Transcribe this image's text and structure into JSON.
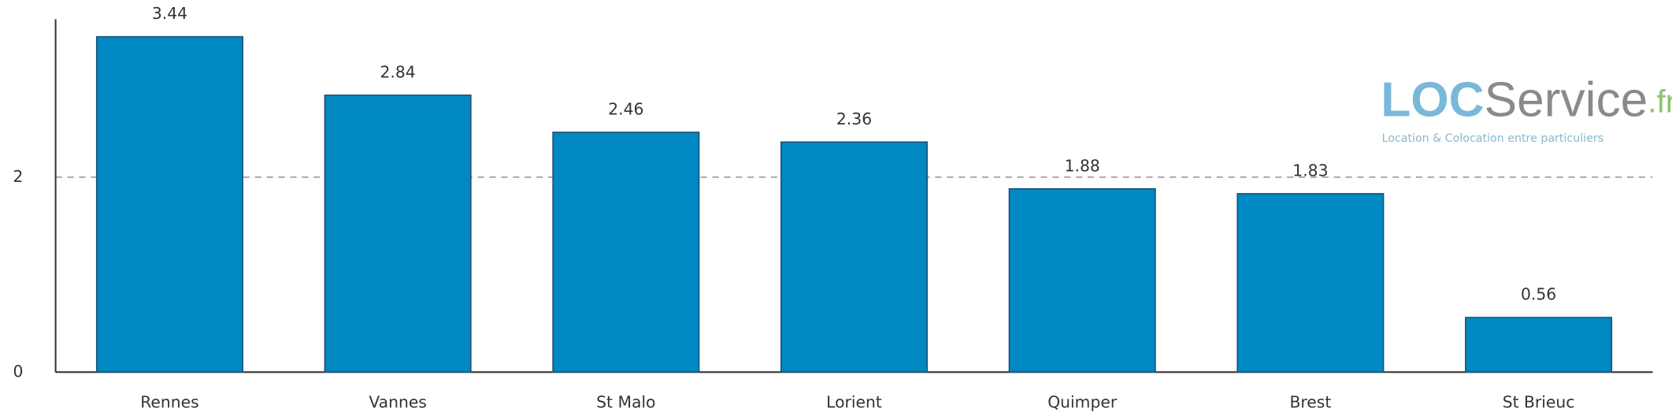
{
  "chart_data": {
    "type": "bar",
    "categories": [
      "Rennes",
      "Vannes",
      "St Malo",
      "Lorient",
      "Quimper",
      "Brest",
      "St Brieuc"
    ],
    "values": [
      3.44,
      2.84,
      2.46,
      2.36,
      1.88,
      1.83,
      0.56
    ],
    "color": "#0088c2",
    "ylim": [
      0,
      3.62
    ],
    "yticks": [
      0,
      2
    ],
    "grid": true
  },
  "logo": {
    "brand": "LOC",
    "name": "Service",
    "tld": ".fr",
    "tagline": "Location & Colocation entre particuliers"
  }
}
